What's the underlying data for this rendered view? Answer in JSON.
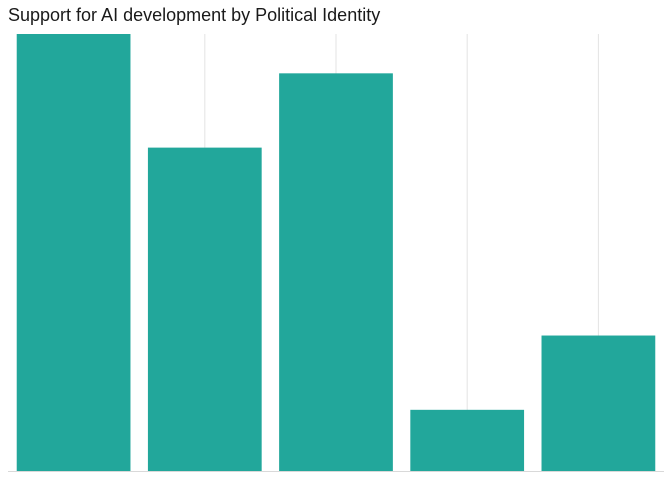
{
  "chart_data": {
    "type": "bar",
    "title": "Support for AI development by Political Identity",
    "xlabel": "",
    "ylabel": "",
    "categories": [
      "",
      "",
      "",
      "",
      ""
    ],
    "values": [
      100,
      74,
      91,
      14,
      31
    ],
    "ylim": [
      0,
      100
    ],
    "grid": "vertical-major",
    "legend": "none",
    "bar_color": "#22A79B",
    "grid_color": "#E3E3E3",
    "axis_color": "#D9D9D9"
  }
}
